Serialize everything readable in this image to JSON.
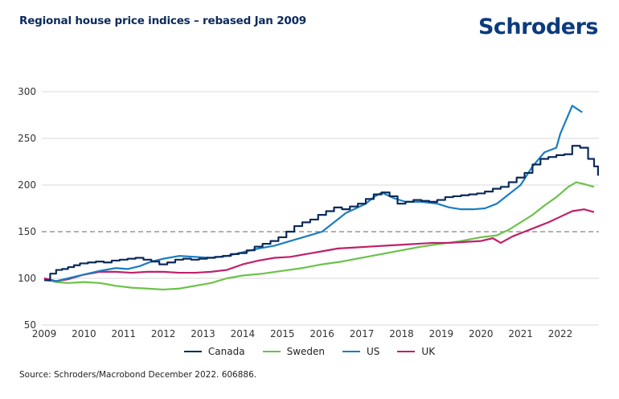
{
  "header": {
    "title": "Regional house price indices – rebased Jan 2009",
    "brand": "Schroders"
  },
  "footer": {
    "source": "Source: Schroders/Macrobond December 2022. 606886."
  },
  "chart_data": {
    "type": "line",
    "title": "Regional house price indices – rebased Jan 2009",
    "xlabel": "",
    "ylabel": "",
    "xlim": [
      2009,
      2023
    ],
    "ylim": [
      50,
      300
    ],
    "yticks": [
      50,
      100,
      150,
      200,
      250,
      300
    ],
    "xticks": [
      2009,
      2010,
      2011,
      2012,
      2013,
      2014,
      2015,
      2016,
      2017,
      2018,
      2019,
      2020,
      2021,
      2022
    ],
    "grid": "horizontal",
    "reference_line": {
      "value": 150,
      "style": "dashed",
      "color": "#999999"
    },
    "legend_position": "bottom-center",
    "series": [
      {
        "name": "Canada",
        "color": "#0b2a5b",
        "step": true,
        "x": [
          2009.0,
          2009.15,
          2009.3,
          2009.45,
          2009.6,
          2009.75,
          2009.9,
          2010.1,
          2010.3,
          2010.5,
          2010.7,
          2010.9,
          2011.1,
          2011.3,
          2011.5,
          2011.7,
          2011.9,
          2012.1,
          2012.3,
          2012.5,
          2012.7,
          2012.9,
          2013.1,
          2013.3,
          2013.5,
          2013.7,
          2013.9,
          2014.1,
          2014.3,
          2014.5,
          2014.7,
          2014.9,
          2015.1,
          2015.3,
          2015.5,
          2015.7,
          2015.9,
          2016.1,
          2016.3,
          2016.5,
          2016.7,
          2016.9,
          2017.1,
          2017.3,
          2017.5,
          2017.7,
          2017.9,
          2018.1,
          2018.3,
          2018.5,
          2018.7,
          2018.9,
          2019.1,
          2019.3,
          2019.5,
          2019.7,
          2019.9,
          2020.1,
          2020.3,
          2020.5,
          2020.7,
          2020.9,
          2021.1,
          2021.3,
          2021.5,
          2021.7,
          2021.9,
          2022.1,
          2022.3,
          2022.5,
          2022.7,
          2022.85,
          2022.95
        ],
        "values": [
          98,
          105,
          109,
          110,
          112,
          114,
          116,
          117,
          118,
          117,
          119,
          120,
          121,
          122,
          120,
          118,
          115,
          117,
          120,
          121,
          120,
          121,
          122,
          123,
          124,
          126,
          127,
          130,
          134,
          137,
          140,
          144,
          150,
          156,
          160,
          163,
          168,
          172,
          176,
          174,
          177,
          180,
          185,
          190,
          192,
          188,
          180,
          182,
          184,
          183,
          182,
          184,
          187,
          188,
          189,
          190,
          191,
          193,
          196,
          198,
          203,
          208,
          213,
          222,
          228,
          230,
          232,
          233,
          242,
          240,
          228,
          220,
          210
        ]
      },
      {
        "name": "Sweden",
        "color": "#6cc24a",
        "step": false,
        "x": [
          2009.0,
          2009.3,
          2009.6,
          2010.0,
          2010.4,
          2010.8,
          2011.2,
          2011.6,
          2012.0,
          2012.4,
          2012.8,
          2013.2,
          2013.6,
          2014.0,
          2014.5,
          2015.0,
          2015.5,
          2016.0,
          2016.5,
          2017.0,
          2017.5,
          2018.0,
          2018.5,
          2019.0,
          2019.5,
          2020.0,
          2020.4,
          2020.7,
          2021.0,
          2021.3,
          2021.6,
          2021.9,
          2022.2,
          2022.4,
          2022.6,
          2022.85
        ],
        "values": [
          100,
          96,
          95,
          96,
          95,
          92,
          90,
          89,
          88,
          89,
          92,
          95,
          100,
          103,
          105,
          108,
          111,
          115,
          118,
          122,
          126,
          130,
          134,
          137,
          140,
          144,
          146,
          152,
          160,
          168,
          178,
          187,
          198,
          203,
          201,
          198
        ]
      },
      {
        "name": "US",
        "color": "#1b7dc1",
        "step": false,
        "x": [
          2009.0,
          2009.3,
          2009.6,
          2010.0,
          2010.4,
          2010.8,
          2011.1,
          2011.4,
          2011.7,
          2012.0,
          2012.4,
          2012.8,
          2013.2,
          2013.6,
          2014.0,
          2014.4,
          2014.8,
          2015.2,
          2015.6,
          2016.0,
          2016.3,
          2016.6,
          2016.9,
          2017.1,
          2017.3,
          2017.5,
          2017.8,
          2018.1,
          2018.5,
          2018.9,
          2019.2,
          2019.5,
          2019.8,
          2020.1,
          2020.4,
          2020.7,
          2021.0,
          2021.3,
          2021.6,
          2021.9,
          2022.0,
          2022.3,
          2022.55
        ],
        "values": [
          98,
          97,
          100,
          104,
          108,
          111,
          110,
          113,
          118,
          121,
          124,
          123,
          122,
          124,
          128,
          132,
          135,
          140,
          145,
          150,
          160,
          170,
          176,
          180,
          187,
          192,
          186,
          182,
          182,
          180,
          176,
          174,
          174,
          175,
          180,
          190,
          200,
          220,
          235,
          240,
          255,
          285,
          278
        ]
      },
      {
        "name": "UK",
        "color": "#c0206a",
        "step": false,
        "x": [
          2009.0,
          2009.3,
          2009.6,
          2010.0,
          2010.4,
          2010.8,
          2011.2,
          2011.6,
          2012.0,
          2012.4,
          2012.8,
          2013.2,
          2013.6,
          2014.0,
          2014.4,
          2014.8,
          2015.2,
          2015.6,
          2016.0,
          2016.4,
          2016.8,
          2017.2,
          2017.6,
          2018.0,
          2018.4,
          2018.8,
          2019.2,
          2019.6,
          2020.0,
          2020.3,
          2020.5,
          2020.8,
          2021.1,
          2021.4,
          2021.7,
          2022.0,
          2022.3,
          2022.6,
          2022.85
        ],
        "values": [
          100,
          97,
          99,
          104,
          107,
          107,
          106,
          107,
          107,
          106,
          106,
          107,
          109,
          115,
          119,
          122,
          123,
          126,
          129,
          132,
          133,
          134,
          135,
          136,
          137,
          138,
          138,
          139,
          140,
          143,
          138,
          145,
          150,
          155,
          160,
          166,
          172,
          174,
          171
        ]
      }
    ]
  }
}
